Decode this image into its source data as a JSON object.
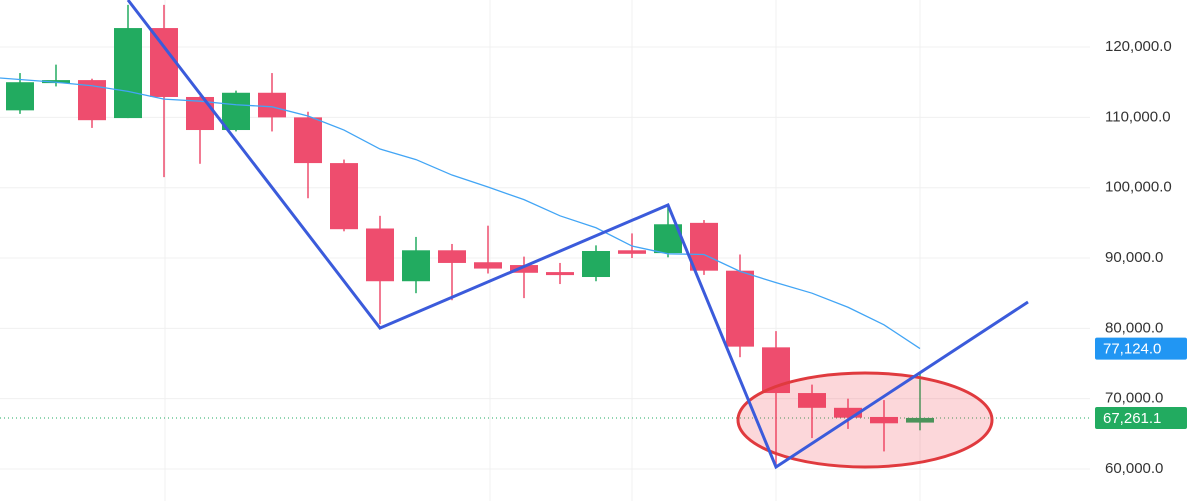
{
  "chart_data": {
    "type": "candlestick",
    "categories": [
      null,
      null,
      null,
      null,
      null,
      null,
      null,
      null,
      null,
      null,
      null,
      null,
      null,
      null,
      null,
      null,
      null,
      null,
      null,
      null,
      null,
      null,
      null,
      null,
      null,
      null
    ],
    "open": [
      111000,
      114900,
      115300,
      109900,
      122700,
      112900,
      108200,
      113500,
      110000,
      103500,
      94200,
      86700,
      91100,
      89400,
      89000,
      88000,
      87300,
      91100,
      90700,
      95000,
      88200,
      77300,
      70800,
      68700,
      67400,
      66600
    ],
    "high": [
      116300,
      117500,
      115500,
      126000,
      126000,
      113000,
      113800,
      116300,
      110800,
      104000,
      96000,
      93000,
      92000,
      94600,
      90200,
      89300,
      91800,
      93500,
      97300,
      95400,
      90500,
      79600,
      72000,
      70000,
      69800,
      73700
    ],
    "low": [
      110500,
      114400,
      108500,
      109900,
      101500,
      103400,
      108000,
      108000,
      98500,
      93800,
      80600,
      85000,
      84000,
      87800,
      84300,
      86300,
      86700,
      90000,
      90100,
      87600,
      75900,
      60500,
      64400,
      65700,
      62500,
      65500
    ],
    "close": [
      115000,
      115300,
      109600,
      122700,
      112900,
      108200,
      113500,
      110000,
      103500,
      94100,
      86700,
      91100,
      89300,
      88500,
      87900,
      87600,
      91000,
      90600,
      94800,
      88200,
      77400,
      70800,
      68700,
      67300,
      66500,
      67261.1
    ],
    "up_color": "#22ab60",
    "down_color": "#ee4d6e",
    "ma": {
      "color": "#42a5f5",
      "values": [
        115600,
        115000,
        114500,
        113700,
        112600,
        112300,
        111800,
        111500,
        110200,
        108200,
        105500,
        104000,
        101800,
        100100,
        98300,
        96000,
        94300,
        91700,
        90600,
        90500,
        88100,
        86500,
        85000,
        83000,
        80500,
        77124
      ],
      "last_label": {
        "value": 77124,
        "label": "77,124.0"
      }
    },
    "price_line": {
      "value": 67261.1,
      "label": "67,261.1",
      "color": "#22ab60"
    },
    "ylim": [
      55450,
      126690
    ],
    "yticks": [
      {
        "value": 60000,
        "label": "60,000.0"
      },
      {
        "value": 70000,
        "label": "70,000.0"
      },
      {
        "value": 80000,
        "label": "80,000.0"
      },
      {
        "value": 90000,
        "label": "90,000.0"
      },
      {
        "value": 100000,
        "label": "100,000.0"
      },
      {
        "value": 110000,
        "label": "110,000.0"
      },
      {
        "value": 120000,
        "label": "120,000.0"
      }
    ],
    "grid": true
  }
}
